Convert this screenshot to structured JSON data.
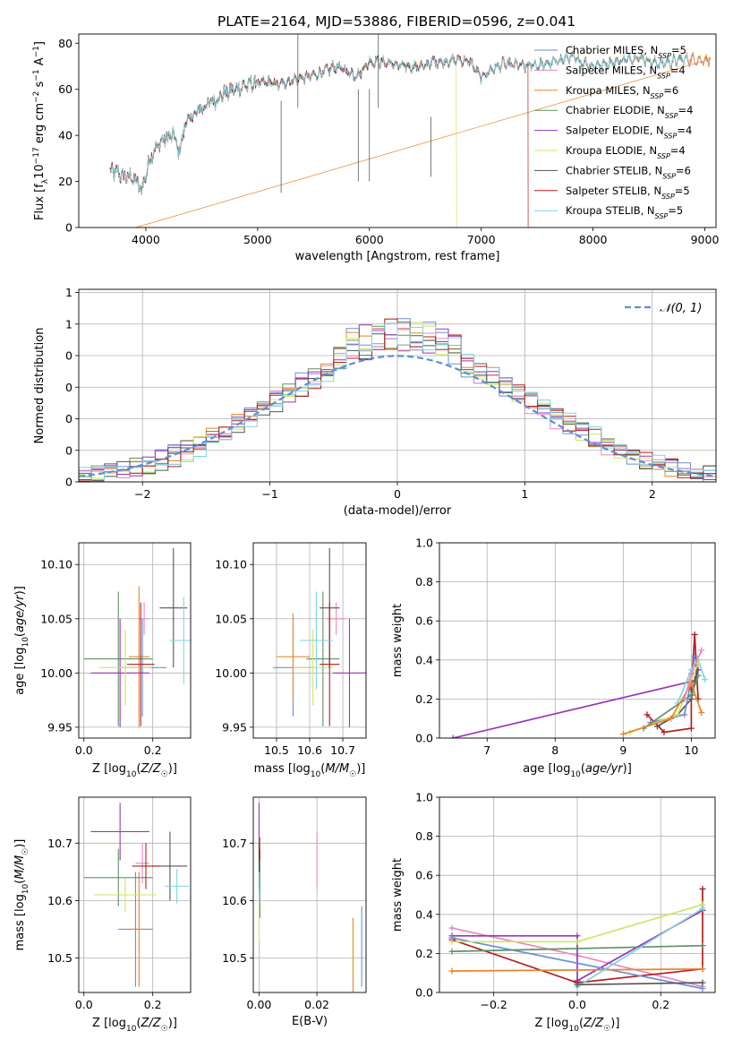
{
  "title": "PLATE=2164, MJD=53886, FIBERID=0596, z=0.041",
  "colors": {
    "cm": "#6a8fd9",
    "sm": "#e88ac0",
    "km": "#e8852a",
    "ce": "#5e9167",
    "se": "#9a35b7",
    "ke": "#cfe565",
    "cs": "#555555",
    "ss": "#b21e1e",
    "ks": "#7dd6e0",
    "grid": "#b0b0b0",
    "normal": "#5b8fd9"
  },
  "chart_data": [
    {
      "id": "spectrum",
      "type": "line",
      "xlabel": "wavelength [Angstrom, rest frame]",
      "ylabel": "Flux [f_λ 10^-17 erg cm^-2 s^-1 A^-1]",
      "xlim": [
        3400,
        9100
      ],
      "ylim": [
        0,
        84
      ],
      "xticks": [
        4000,
        5000,
        6000,
        7000,
        8000,
        9000
      ],
      "yticks": [
        0,
        20,
        40,
        60,
        80
      ],
      "grid": false,
      "legend_position": "top-right",
      "continuum": [
        [
          3680,
          24
        ],
        [
          3750,
          24
        ],
        [
          3800,
          22
        ],
        [
          3860,
          22
        ],
        [
          3900,
          21
        ],
        [
          3960,
          16
        ],
        [
          4050,
          32
        ],
        [
          4150,
          38
        ],
        [
          4250,
          40
        ],
        [
          4300,
          32
        ],
        [
          4350,
          45
        ],
        [
          4500,
          52
        ],
        [
          4700,
          58
        ],
        [
          4850,
          61
        ],
        [
          5000,
          63
        ],
        [
          5100,
          63
        ],
        [
          5200,
          62
        ],
        [
          5300,
          64
        ],
        [
          5500,
          66
        ],
        [
          5700,
          70
        ],
        [
          5890,
          66
        ],
        [
          6000,
          72
        ],
        [
          6100,
          72
        ],
        [
          6300,
          70
        ],
        [
          6500,
          70
        ],
        [
          6563,
          72
        ],
        [
          6700,
          72
        ],
        [
          6800,
          73
        ],
        [
          6900,
          72
        ],
        [
          7000,
          65
        ],
        [
          7100,
          69
        ],
        [
          7200,
          71
        ],
        [
          7400,
          70
        ],
        [
          7600,
          71
        ],
        [
          7800,
          74
        ],
        [
          8000,
          70
        ],
        [
          8200,
          72
        ],
        [
          8400,
          74
        ],
        [
          8600,
          71
        ],
        [
          8800,
          73
        ]
      ],
      "cutoffs": {
        "km": 3910,
        "ke": 6780,
        "ss": 7420
      },
      "series": [
        {
          "key": "cm",
          "name": "Chabrier MILES, N_SSP=5",
          "end": 9050
        },
        {
          "key": "sm",
          "name": "Salpeter MILES, N_SSP=4",
          "end": 8900
        },
        {
          "key": "km",
          "name": "Kroupa MILES, N_SSP=6",
          "end": 9050
        },
        {
          "key": "ce",
          "name": "Chabrier ELODIE, N_SSP=4",
          "end": 6780
        },
        {
          "key": "se",
          "name": "Salpeter ELODIE, N_SSP=4",
          "end": 6780
        },
        {
          "key": "ke",
          "name": "Kroupa ELODIE, N_SSP=4",
          "end": 6780
        },
        {
          "key": "cs",
          "name": "Chabrier STELIB, N_SSP=6",
          "end": 8800
        },
        {
          "key": "ss",
          "name": "Salpeter STELIB, N_SSP=5",
          "end": 7420
        },
        {
          "key": "ks",
          "name": "Kroupa STELIB, N_SSP=5",
          "end": 8850
        }
      ]
    },
    {
      "id": "residuals",
      "type": "line",
      "xlabel": "(data-model)/error",
      "ylabel": "Normed distribution",
      "xlim": [
        -2.5,
        2.5
      ],
      "ylim": [
        0,
        0.61
      ],
      "xticks": [
        -2,
        -1,
        0,
        1,
        2
      ],
      "yticks": [
        0.0,
        0.1,
        0.2,
        0.3,
        0.4,
        0.5,
        0.6
      ],
      "grid": true,
      "legend": "𝒩(0, 1)",
      "legend_position": "top-right",
      "bin_width": 0.1,
      "keys": [
        "cm",
        "sm",
        "km",
        "ce",
        "se",
        "ke",
        "cs",
        "ss",
        "ks"
      ]
    },
    {
      "id": "age-vs-Z",
      "type": "scatter",
      "xlabel": "Z [log10(Z/Z☉)]",
      "ylabel": "age [log10(age/yr)]",
      "xlim": [
        -0.015,
        0.31
      ],
      "ylim": [
        9.94,
        10.12
      ],
      "xticks": [
        0.0,
        0.2
      ],
      "yticks": [
        9.95,
        10.0,
        10.05,
        10.1
      ],
      "tick_format": {
        "x": 1,
        "y": 2
      },
      "grid": true,
      "points": [
        {
          "k": "cm",
          "x": 0.17,
          "y": 10.005,
          "xe": 0.07,
          "ye": 0.045
        },
        {
          "k": "sm",
          "x": 0.175,
          "y": 10.05,
          "xe": 0.015,
          "ye": 0.015
        },
        {
          "k": "km",
          "x": 0.16,
          "y": 10.015,
          "xe": 0.03,
          "ye": 0.065
        },
        {
          "k": "ce",
          "x": 0.1,
          "y": 10.013,
          "xe": 0.1,
          "ye": 0.062
        },
        {
          "k": "se",
          "x": 0.105,
          "y": 10.0,
          "xe": 0.085,
          "ye": 0.05
        },
        {
          "k": "ke",
          "x": 0.12,
          "y": 10.005,
          "xe": 0.075,
          "ye": 0.035
        },
        {
          "k": "cs",
          "x": 0.26,
          "y": 10.06,
          "xe": 0.04,
          "ye": 0.055
        },
        {
          "k": "ss",
          "x": 0.165,
          "y": 10.008,
          "xe": 0.04,
          "ye": 0.057
        },
        {
          "k": "ks",
          "x": 0.29,
          "y": 10.03,
          "xe": 0.04,
          "ye": 0.04
        }
      ]
    },
    {
      "id": "age-vs-mass",
      "type": "scatter",
      "xlabel": "mass [log10(M/M☉)]",
      "ylabel": "",
      "xlim": [
        10.43,
        10.77
      ],
      "ylim": [
        9.94,
        10.12
      ],
      "xticks": [
        10.5,
        10.6,
        10.7
      ],
      "yticks": [
        9.95,
        10.0,
        10.05,
        10.1
      ],
      "tick_format": {
        "x": 1,
        "y": 2
      },
      "grid": true,
      "points": [
        {
          "k": "cm",
          "x": 10.55,
          "y": 10.005,
          "xe": 0.06,
          "ye": 0.045
        },
        {
          "k": "sm",
          "x": 10.68,
          "y": 10.05,
          "xe": 0.03,
          "ye": 0.015
        },
        {
          "k": "km",
          "x": 10.55,
          "y": 10.015,
          "xe": 0.05,
          "ye": 0.04
        },
        {
          "k": "ce",
          "x": 10.64,
          "y": 10.013,
          "xe": 0.05,
          "ye": 0.062
        },
        {
          "k": "se",
          "x": 10.72,
          "y": 10.0,
          "xe": 0.05,
          "ye": 0.05
        },
        {
          "k": "ke",
          "x": 10.61,
          "y": 10.005,
          "xe": 0.06,
          "ye": 0.035
        },
        {
          "k": "cs",
          "x": 10.66,
          "y": 10.06,
          "xe": 0.03,
          "ye": 0.055
        },
        {
          "k": "ss",
          "x": 10.66,
          "y": 10.008,
          "xe": 0.03,
          "ye": 0.057
        },
        {
          "k": "ks",
          "x": 10.62,
          "y": 10.03,
          "xe": 0.05,
          "ye": 0.045
        }
      ]
    },
    {
      "id": "weight-vs-age",
      "type": "line",
      "xlabel": "age [log10(age/yr)]",
      "ylabel": "mass weight",
      "xlim": [
        6.3,
        10.35
      ],
      "ylim": [
        0,
        1.0
      ],
      "xticks": [
        7,
        8,
        9,
        10
      ],
      "yticks": [
        0.0,
        0.2,
        0.4,
        0.6,
        0.8,
        1.0
      ],
      "tick_format": {
        "x": 0,
        "y": 1
      },
      "grid": true,
      "series": [
        {
          "k": "se",
          "points": [
            [
              6.5,
              0.0
            ],
            [
              10.0,
              0.29
            ],
            [
              10.05,
              0.3
            ],
            [
              10.1,
              0.35
            ],
            [
              10.0,
              0.22
            ]
          ]
        },
        {
          "k": "ss",
          "points": [
            [
              9.35,
              0.12
            ],
            [
              9.6,
              0.03
            ],
            [
              10.0,
              0.05
            ],
            [
              10.0,
              0.25
            ],
            [
              10.05,
              0.53
            ],
            [
              10.1,
              0.2
            ]
          ]
        },
        {
          "k": "cs",
          "points": [
            [
              9.5,
              0.06
            ],
            [
              9.8,
              0.12
            ],
            [
              10.0,
              0.2
            ],
            [
              10.1,
              0.38
            ]
          ]
        },
        {
          "k": "cm",
          "points": [
            [
              9.4,
              0.08
            ],
            [
              9.9,
              0.12
            ],
            [
              10.0,
              0.3
            ],
            [
              10.05,
              0.42
            ]
          ]
        },
        {
          "k": "ks",
          "points": [
            [
              9.8,
              0.18
            ],
            [
              10.0,
              0.35
            ],
            [
              10.1,
              0.4
            ],
            [
              10.2,
              0.3
            ]
          ]
        },
        {
          "k": "ke",
          "points": [
            [
              9.1,
              0.03
            ],
            [
              9.8,
              0.12
            ],
            [
              10.0,
              0.3
            ],
            [
              10.1,
              0.38
            ]
          ]
        },
        {
          "k": "ce",
          "points": [
            [
              9.3,
              0.05
            ],
            [
              10.0,
              0.22
            ],
            [
              10.1,
              0.32
            ]
          ]
        },
        {
          "k": "km",
          "points": [
            [
              9.0,
              0.02
            ],
            [
              9.7,
              0.1
            ],
            [
              10.0,
              0.28
            ],
            [
              10.15,
              0.13
            ]
          ]
        },
        {
          "k": "sm",
          "points": [
            [
              9.9,
              0.2
            ],
            [
              10.0,
              0.33
            ],
            [
              10.15,
              0.45
            ]
          ]
        }
      ]
    },
    {
      "id": "mass-vs-Z",
      "type": "scatter",
      "xlabel": "Z [log10(Z/Z☉)]",
      "ylabel": "mass [log10(M/M☉)]",
      "xlim": [
        -0.015,
        0.31
      ],
      "ylim": [
        10.44,
        10.78
      ],
      "xticks": [
        0.0,
        0.2
      ],
      "yticks": [
        10.5,
        10.6,
        10.7
      ],
      "tick_format": {
        "x": 1,
        "y": 1
      },
      "grid": true,
      "points": [
        {
          "k": "cm",
          "x": 0.15,
          "y": 10.55,
          "xe": 0.05,
          "ye": 0.1
        },
        {
          "k": "sm",
          "x": 0.17,
          "y": 10.665,
          "xe": 0.02,
          "ye": 0.035
        },
        {
          "k": "km",
          "x": 0.16,
          "y": 10.55,
          "xe": 0.03,
          "ye": 0.1
        },
        {
          "k": "ce",
          "x": 0.1,
          "y": 10.64,
          "xe": 0.1,
          "ye": 0.05
        },
        {
          "k": "se",
          "x": 0.105,
          "y": 10.72,
          "xe": 0.085,
          "ye": 0.05
        },
        {
          "k": "ke",
          "x": 0.12,
          "y": 10.61,
          "xe": 0.09,
          "ye": 0.03
        },
        {
          "k": "cs",
          "x": 0.25,
          "y": 10.66,
          "xe": 0.05,
          "ye": 0.06
        },
        {
          "k": "ss",
          "x": 0.18,
          "y": 10.66,
          "xe": 0.04,
          "ye": 0.04
        },
        {
          "k": "ks",
          "x": 0.27,
          "y": 10.625,
          "xe": 0.035,
          "ye": 0.03
        }
      ]
    },
    {
      "id": "mass-vs-ebv",
      "type": "scatter",
      "xlabel": "E(B-V)",
      "ylabel": "",
      "xlim": [
        -0.002,
        0.037
      ],
      "ylim": [
        10.44,
        10.78
      ],
      "xticks": [
        0.0,
        0.02
      ],
      "yticks": [
        10.5,
        10.6,
        10.7
      ],
      "tick_format": {
        "x": 2,
        "y": 1
      },
      "grid": true,
      "points": [
        {
          "k": "cm",
          "x": 0.0355,
          "y": 10.52,
          "xe": 0,
          "ye": 0.07
        },
        {
          "k": "sm",
          "x": 0.02,
          "y": 10.67,
          "xe": 0,
          "ye": 0.05
        },
        {
          "k": "km",
          "x": 0.0325,
          "y": 10.5,
          "xe": 0,
          "ye": 0.07
        },
        {
          "k": "ce",
          "x": 0.0003,
          "y": 10.63,
          "xe": 0,
          "ye": 0.06
        },
        {
          "k": "se",
          "x": 0.0,
          "y": 10.72,
          "xe": 0,
          "ye": 0.05
        },
        {
          "k": "ke",
          "x": 0.0,
          "y": 10.58,
          "xe": 0,
          "ye": 0.05
        },
        {
          "k": "cs",
          "x": 0.0,
          "y": 10.66,
          "xe": 0,
          "ye": 0.04
        },
        {
          "k": "ss",
          "x": 0.0002,
          "y": 10.69,
          "xe": 0,
          "ye": 0.02
        },
        {
          "k": "ks",
          "x": 0.0001,
          "y": 10.62,
          "xe": 0,
          "ye": 0.03
        }
      ]
    },
    {
      "id": "weight-vs-Z",
      "type": "line",
      "xlabel": "Z [log10(Z/Z☉)]",
      "ylabel": "mass weight",
      "xlim": [
        -0.33,
        0.33
      ],
      "ylim": [
        0,
        1.0
      ],
      "xticks": [
        -0.2,
        0.0,
        0.2
      ],
      "yticks": [
        0.0,
        0.2,
        0.4,
        0.6,
        0.8,
        1.0
      ],
      "tick_format": {
        "x": 1,
        "y": 1
      },
      "grid": true,
      "series": [
        {
          "k": "sm",
          "points": [
            [
              -0.3,
              0.33
            ],
            [
              0.0,
              0.19
            ],
            [
              0.3,
              0.03
            ]
          ]
        },
        {
          "k": "se",
          "points": [
            [
              -0.3,
              0.29
            ],
            [
              0.0,
              0.29
            ],
            [
              0.0,
              0.06
            ],
            [
              0.3,
              0.42
            ]
          ]
        },
        {
          "k": "ss",
          "points": [
            [
              -0.3,
              0.27
            ],
            [
              0.0,
              0.05
            ],
            [
              0.3,
              0.12
            ],
            [
              0.3,
              0.53
            ]
          ]
        },
        {
          "k": "cm",
          "points": [
            [
              -0.3,
              0.28
            ],
            [
              0.3,
              0.02
            ]
          ]
        },
        {
          "k": "ce",
          "points": [
            [
              -0.3,
              0.21
            ],
            [
              0.3,
              0.24
            ]
          ]
        },
        {
          "k": "ke",
          "points": [
            [
              -0.3,
              0.26
            ],
            [
              0.0,
              0.26
            ],
            [
              0.3,
              0.45
            ]
          ]
        },
        {
          "k": "km",
          "points": [
            [
              -0.3,
              0.11
            ],
            [
              0.3,
              0.12
            ]
          ]
        },
        {
          "k": "ks",
          "points": [
            [
              0.0,
              0.03
            ],
            [
              0.3,
              0.43
            ]
          ]
        },
        {
          "k": "cs",
          "points": [
            [
              0.0,
              0.04
            ],
            [
              0.3,
              0.05
            ]
          ]
        }
      ]
    }
  ]
}
